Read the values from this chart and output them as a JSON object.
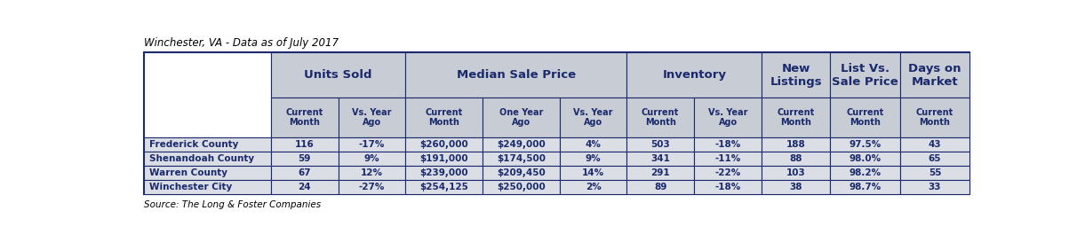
{
  "title": "Winchester, VA - Data as of July 2017",
  "source": "Source: The Long & Foster Companies",
  "sub_headers": [
    "Current\nMonth",
    "Vs. Year\nAgo",
    "Current\nMonth",
    "One Year\nAgo",
    "Vs. Year\nAgo",
    "Current\nMonth",
    "Vs. Year\nAgo",
    "Current\nMonth",
    "Current\nMonth",
    "Current\nMonth"
  ],
  "row_labels": [
    "Frederick County",
    "Shenandoah County",
    "Warren County",
    "Winchester City"
  ],
  "rows": [
    [
      "116",
      "-17%",
      "$260,000",
      "$249,000",
      "4%",
      "503",
      "-18%",
      "188",
      "97.5%",
      "43"
    ],
    [
      "59",
      "9%",
      "$191,000",
      "$174,500",
      "9%",
      "341",
      "-11%",
      "88",
      "98.0%",
      "65"
    ],
    [
      "67",
      "12%",
      "$239,000",
      "$209,450",
      "14%",
      "291",
      "-22%",
      "103",
      "98.2%",
      "55"
    ],
    [
      "24",
      "-27%",
      "$254,125",
      "$250,000",
      "2%",
      "89",
      "-18%",
      "38",
      "98.7%",
      "33"
    ]
  ],
  "header_bg": "#c8ccd4",
  "data_row_bg": "#dcdee6",
  "border_color": "#1a2a6c",
  "header_text": "#1a2a6c",
  "text_color": "#1a2a6c",
  "title_color": "#000000",
  "source_color": "#000000"
}
